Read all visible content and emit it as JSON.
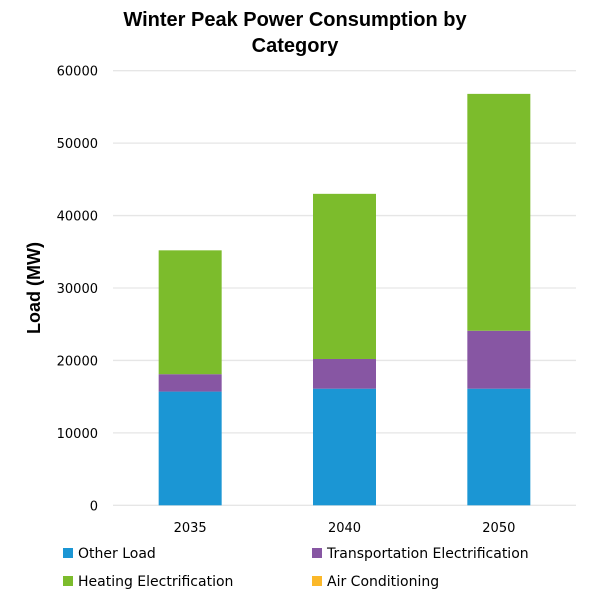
{
  "chart_data": {
    "type": "bar",
    "stacked": true,
    "title": [
      "Winter Peak Power Consumption by",
      "Category"
    ],
    "xlabel": "",
    "ylabel": "Load (MW)",
    "ylim": [
      0,
      60000
    ],
    "yticks": [
      0,
      10000,
      20000,
      30000,
      40000,
      50000,
      60000
    ],
    "ytick_labels": [
      "0",
      "10000",
      "20000",
      "30000",
      "40000",
      "50000",
      "60000"
    ],
    "grid": true,
    "categories": [
      "2035",
      "2040",
      "2050"
    ],
    "series": [
      {
        "name": "Other Load",
        "color": "#1B96D4",
        "values": [
          15700,
          16100,
          16100
        ]
      },
      {
        "name": "Transportation Electrification",
        "color": "#8756A3",
        "values": [
          2400,
          4100,
          8000
        ]
      },
      {
        "name": "Heating Electrification",
        "color": "#7CBC2C",
        "values": [
          17100,
          22800,
          32700
        ]
      },
      {
        "name": "Air Conditioning",
        "color": "#FBB829",
        "values": [
          0,
          0,
          0
        ]
      }
    ],
    "legend_position": "bottom",
    "legend_order": [
      0,
      1,
      2,
      3
    ]
  }
}
